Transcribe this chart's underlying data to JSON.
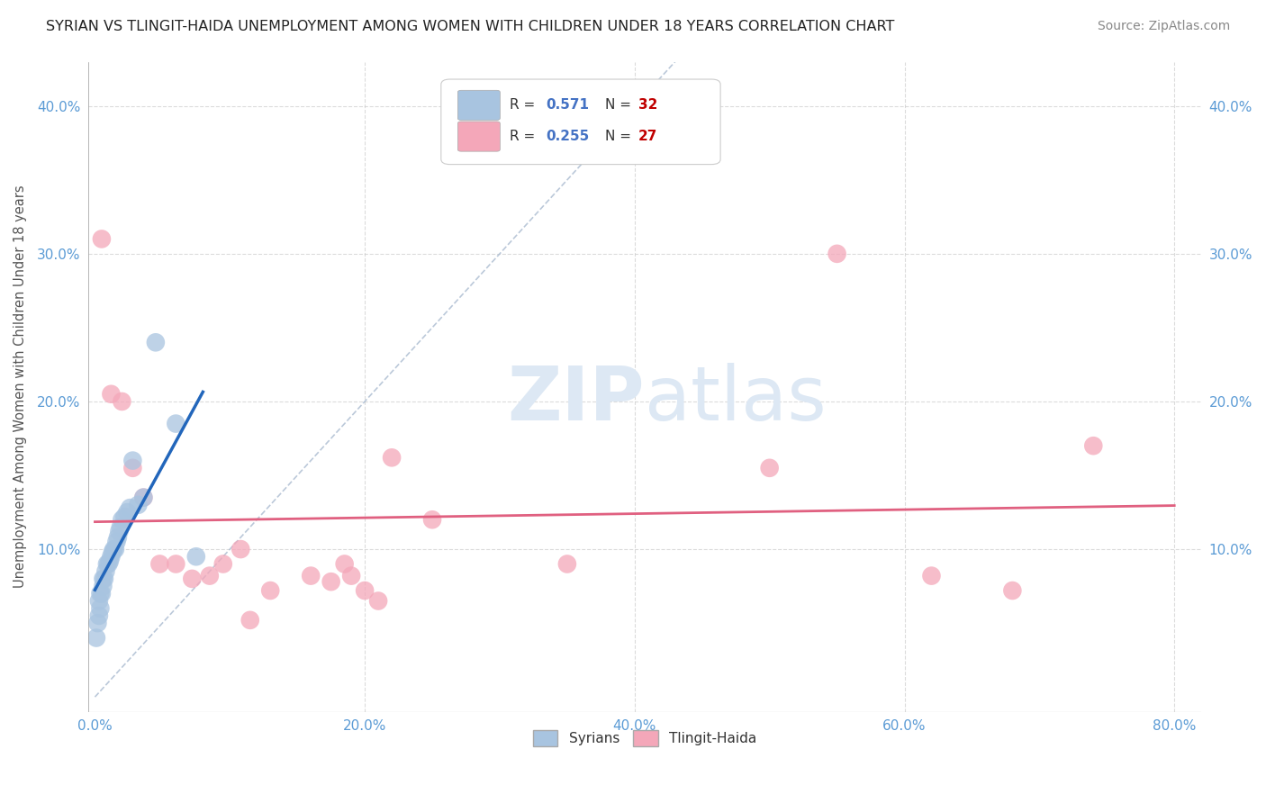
{
  "title": "SYRIAN VS TLINGIT-HAIDA UNEMPLOYMENT AMONG WOMEN WITH CHILDREN UNDER 18 YEARS CORRELATION CHART",
  "source": "Source: ZipAtlas.com",
  "ylabel": "Unemployment Among Women with Children Under 18 years",
  "xlim": [
    -0.005,
    0.82
  ],
  "ylim": [
    -0.01,
    0.43
  ],
  "xticks": [
    0.0,
    0.2,
    0.4,
    0.6,
    0.8
  ],
  "xticklabels": [
    "0.0%",
    "20.0%",
    "40.0%",
    "60.0%",
    "80.0%"
  ],
  "yticks": [
    0.0,
    0.1,
    0.2,
    0.3,
    0.4
  ],
  "yticklabels": [
    "",
    "10.0%",
    "20.0%",
    "30.0%",
    "40.0%"
  ],
  "background_color": "#ffffff",
  "grid_color": "#cccccc",
  "syrians_color": "#a8c4e0",
  "tlingit_color": "#f4a7b9",
  "syrians_line_color": "#2266bb",
  "tlingit_line_color": "#e06080",
  "dashed_line_color": "#aabbd0",
  "axis_tick_color": "#5b9bd5",
  "r_value_color": "#4472c4",
  "n_value_color": "#c00000",
  "legend_R1": "0.571",
  "legend_N1": "32",
  "legend_R2": "0.255",
  "legend_N2": "27",
  "syrians_x": [
    0.001,
    0.002,
    0.003,
    0.003,
    0.004,
    0.004,
    0.005,
    0.006,
    0.006,
    0.007,
    0.008,
    0.009,
    0.01,
    0.011,
    0.012,
    0.013,
    0.014,
    0.015,
    0.016,
    0.017,
    0.018,
    0.019,
    0.02,
    0.022,
    0.024,
    0.026,
    0.028,
    0.032,
    0.036,
    0.045,
    0.06,
    0.075
  ],
  "syrians_y": [
    0.04,
    0.05,
    0.055,
    0.065,
    0.06,
    0.07,
    0.07,
    0.075,
    0.08,
    0.08,
    0.085,
    0.09,
    0.09,
    0.092,
    0.095,
    0.098,
    0.1,
    0.1,
    0.105,
    0.108,
    0.112,
    0.115,
    0.12,
    0.122,
    0.125,
    0.128,
    0.16,
    0.13,
    0.135,
    0.24,
    0.185,
    0.095
  ],
  "tlingit_x": [
    0.005,
    0.012,
    0.02,
    0.028,
    0.036,
    0.048,
    0.06,
    0.072,
    0.085,
    0.095,
    0.108,
    0.115,
    0.13,
    0.16,
    0.175,
    0.185,
    0.19,
    0.2,
    0.21,
    0.22,
    0.25,
    0.35,
    0.5,
    0.55,
    0.62,
    0.68,
    0.74
  ],
  "tlingit_y": [
    0.31,
    0.205,
    0.2,
    0.155,
    0.135,
    0.09,
    0.09,
    0.08,
    0.082,
    0.09,
    0.1,
    0.052,
    0.072,
    0.082,
    0.078,
    0.09,
    0.082,
    0.072,
    0.065,
    0.162,
    0.12,
    0.09,
    0.155,
    0.3,
    0.082,
    0.072,
    0.17
  ]
}
